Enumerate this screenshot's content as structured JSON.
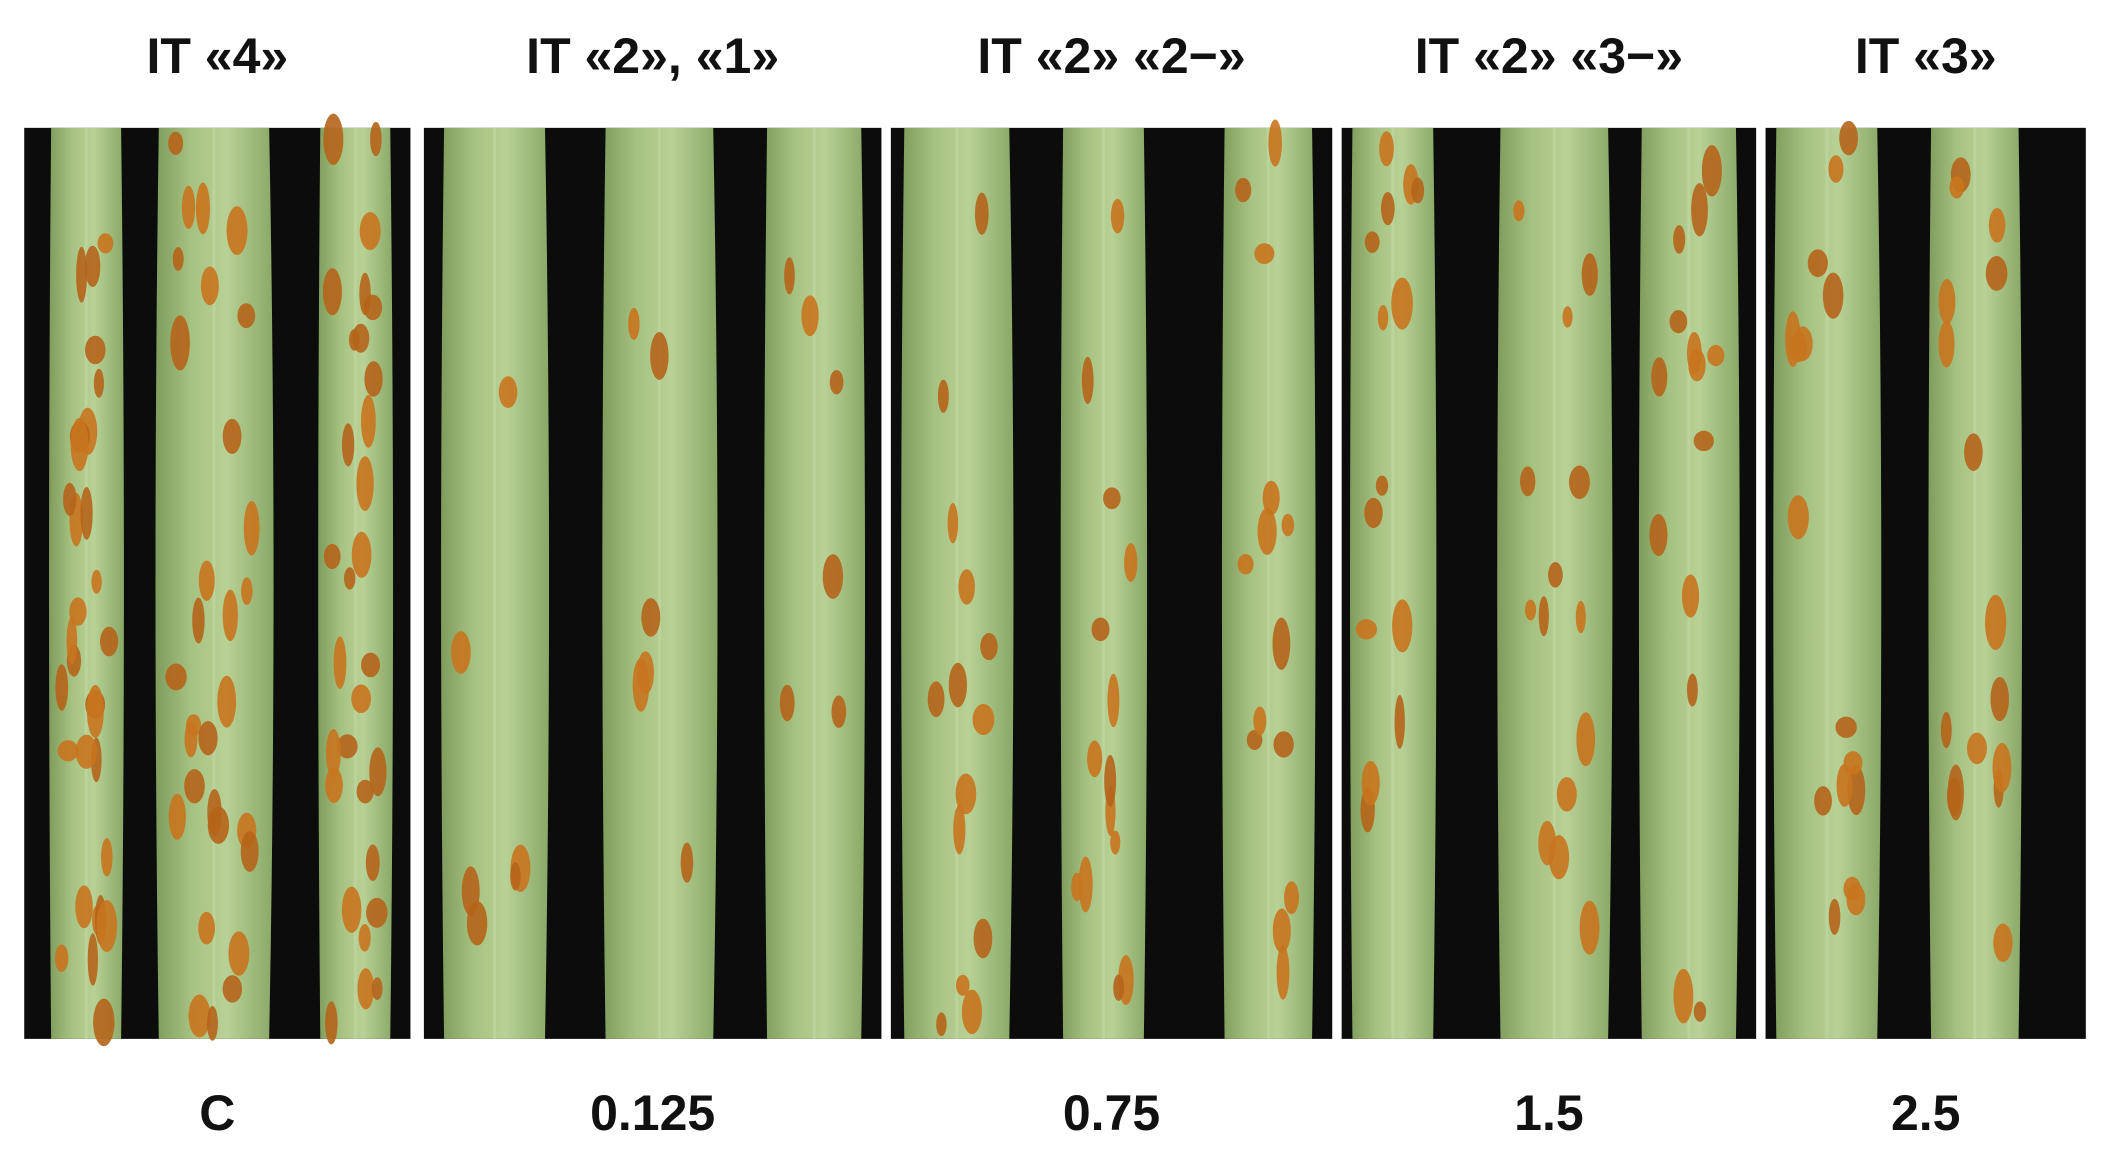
{
  "panels": [
    {
      "label": "IT «4»",
      "treatment": "C"
    },
    {
      "label": "IT «2», «1»",
      "treatment": "0.125"
    },
    {
      "label": "IT «2» «2−»",
      "treatment": "0.75"
    },
    {
      "label": "IT «2» «3−»",
      "treatment": "1.5"
    },
    {
      "label": "IT «3»",
      "treatment": "2.5"
    }
  ]
}
